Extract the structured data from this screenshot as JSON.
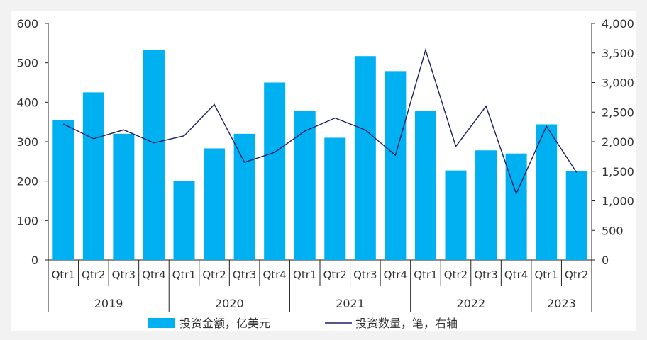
{
  "chart_data": {
    "type": "bar",
    "categories": [
      "Qtr1",
      "Qtr2",
      "Qtr3",
      "Qtr4",
      "Qtr1",
      "Qtr2",
      "Qtr3",
      "Qtr4",
      "Qtr1",
      "Qtr2",
      "Qtr3",
      "Qtr4",
      "Qtr1",
      "Qtr2",
      "Qtr3",
      "Qtr4",
      "Qtr1",
      "Qtr2"
    ],
    "year_groups": [
      {
        "label": "2019",
        "count": 4
      },
      {
        "label": "2020",
        "count": 4
      },
      {
        "label": "2021",
        "count": 4
      },
      {
        "label": "2022",
        "count": 4
      },
      {
        "label": "2023",
        "count": 2
      }
    ],
    "series": [
      {
        "name": "投资金额，亿美元",
        "type": "bar",
        "axis": "left",
        "color": "#00b0f0",
        "values": [
          355,
          425,
          320,
          533,
          200,
          283,
          320,
          450,
          378,
          310,
          517,
          479,
          378,
          227,
          278,
          270,
          344,
          225
        ]
      },
      {
        "name": "投资数量，笔，右轴",
        "type": "line",
        "axis": "right",
        "color": "#1f2060",
        "values": [
          2300,
          2050,
          2200,
          1980,
          2100,
          2630,
          1650,
          1820,
          2180,
          2400,
          2200,
          1770,
          3550,
          1920,
          2600,
          1120,
          2260,
          1480
        ]
      }
    ],
    "left_axis": {
      "ylim": [
        0,
        600
      ],
      "ticks": [
        "0",
        "100",
        "200",
        "300",
        "400",
        "500",
        "600"
      ]
    },
    "right_axis": {
      "ylim": [
        0,
        4000
      ],
      "ticks": [
        "0",
        "500",
        "1,000",
        "1,500",
        "2,000",
        "2,500",
        "3,000",
        "3,500",
        "4,000"
      ]
    },
    "legend_position": "bottom",
    "grid": false
  }
}
